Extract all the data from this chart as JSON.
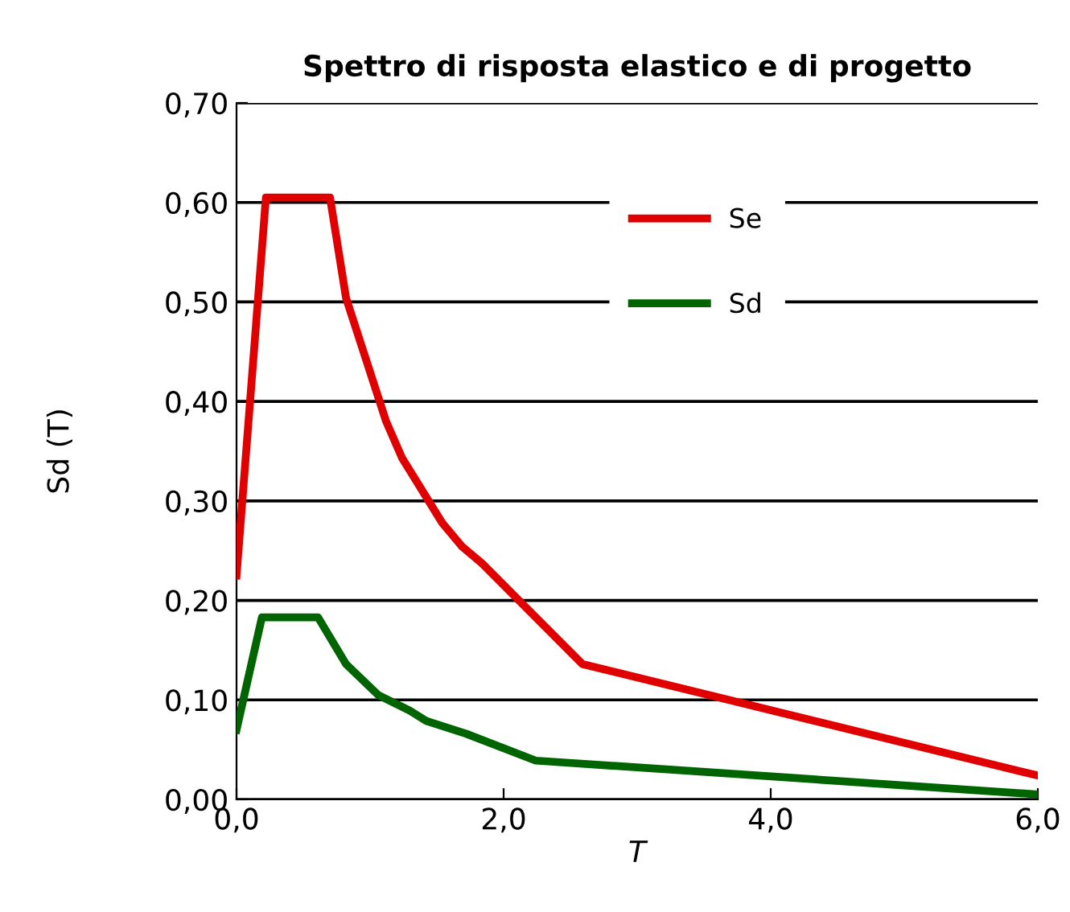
{
  "chart_data": {
    "type": "line",
    "title": "Spettro di risposta elastico e di progetto",
    "xlabel": "T",
    "ylabel": "Sd (T)",
    "series": [
      {
        "name": "Se",
        "color": "#e00000",
        "x": [
          0,
          0.22,
          0.7,
          0.82,
          1.12,
          1.24,
          1.54,
          1.69,
          1.84,
          2.59,
          6.0
        ],
        "values": [
          0.225,
          0.605,
          0.605,
          0.504,
          0.38,
          0.343,
          0.278,
          0.254,
          0.237,
          0.136,
          0.024
        ]
      },
      {
        "name": "Sd",
        "color": "#006400",
        "x": [
          0,
          0.19,
          0.61,
          0.82,
          1.06,
          1.3,
          1.42,
          1.72,
          2.24,
          6.0
        ],
        "values": [
          0.07,
          0.183,
          0.183,
          0.136,
          0.105,
          0.089,
          0.079,
          0.066,
          0.039,
          0.005
        ]
      }
    ],
    "xlim": [
      0,
      6
    ],
    "xticks": [
      {
        "value": 0,
        "label": "0,0"
      },
      {
        "value": 2,
        "label": "2,0"
      },
      {
        "value": 4,
        "label": "4,0"
      },
      {
        "value": 6,
        "label": "6,0"
      }
    ],
    "ylim": [
      0,
      0.7
    ],
    "yticks": [
      {
        "value": 0,
        "label": "0,00"
      },
      {
        "value": 0.1,
        "label": "0,10"
      },
      {
        "value": 0.2,
        "label": "0,20"
      },
      {
        "value": 0.3,
        "label": "0,30"
      },
      {
        "value": 0.4,
        "label": "0,40"
      },
      {
        "value": 0.5,
        "label": "0,50"
      },
      {
        "value": 0.6,
        "label": "0,60"
      },
      {
        "value": 0.7,
        "label": "0,70"
      }
    ],
    "grid": "y",
    "legend": "top right",
    "marker": "none",
    "line_style": "solid"
  }
}
